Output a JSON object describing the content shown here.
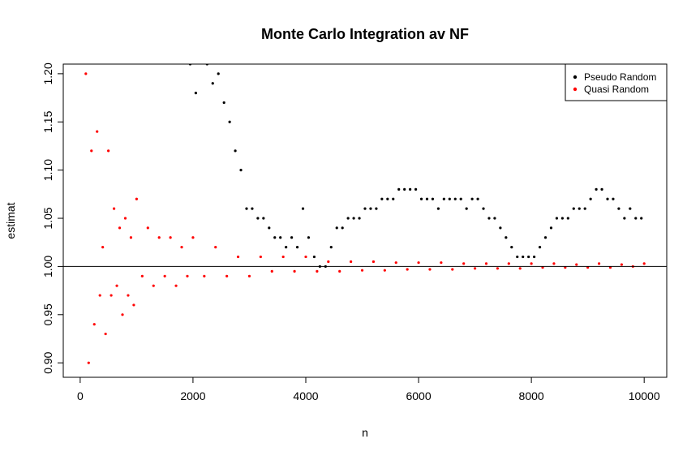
{
  "chart_data": {
    "type": "scatter",
    "title": "Monte Carlo Integration av NF",
    "xlabel": "n",
    "ylabel": "estimat",
    "xlim": [
      -300,
      10400
    ],
    "ylim": [
      0.885,
      1.21
    ],
    "xticks": [
      0,
      2000,
      4000,
      6000,
      8000,
      10000
    ],
    "xtick_labels": [
      "0",
      "2000",
      "4000",
      "6000",
      "8000",
      "10000"
    ],
    "yticks": [
      0.9,
      0.95,
      1.0,
      1.05,
      1.1,
      1.15,
      1.2
    ],
    "ytick_labels": [
      "0.90",
      "0.95",
      "1.00",
      "1.05",
      "1.10",
      "1.15",
      "1.20"
    ],
    "reference_line": 1.0,
    "legend_position": "top-right",
    "series": [
      {
        "name": "Pseudo Random",
        "color": "#000000",
        "x": [
          1950,
          2050,
          2150,
          2250,
          2350,
          2450,
          2550,
          2650,
          2750,
          2850,
          2950,
          3050,
          3150,
          3250,
          3350,
          3450,
          3550,
          3650,
          3750,
          3850,
          3950,
          4050,
          4150,
          4250,
          4350,
          4450,
          4550,
          4650,
          4750,
          4850,
          4950,
          5050,
          5150,
          5250,
          5350,
          5450,
          5550,
          5650,
          5750,
          5850,
          5950,
          6050,
          6150,
          6250,
          6350,
          6450,
          6550,
          6650,
          6750,
          6850,
          6950,
          7050,
          7150,
          7250,
          7350,
          7450,
          7550,
          7650,
          7750,
          7850,
          7950,
          8050,
          8150,
          8250,
          8350,
          8450,
          8550,
          8650,
          8750,
          8850,
          8950,
          9050,
          9150,
          9250,
          9350,
          9450,
          9550,
          9650,
          9750,
          9850,
          9950
        ],
        "y": [
          1.21,
          1.18,
          1.22,
          1.21,
          1.19,
          1.2,
          1.17,
          1.15,
          1.12,
          1.1,
          1.06,
          1.06,
          1.05,
          1.05,
          1.04,
          1.03,
          1.03,
          1.02,
          1.03,
          1.02,
          1.06,
          1.03,
          1.01,
          1.0,
          1.0,
          1.02,
          1.04,
          1.04,
          1.05,
          1.05,
          1.05,
          1.06,
          1.06,
          1.06,
          1.07,
          1.07,
          1.07,
          1.08,
          1.08,
          1.08,
          1.08,
          1.07,
          1.07,
          1.07,
          1.06,
          1.07,
          1.07,
          1.07,
          1.07,
          1.06,
          1.07,
          1.07,
          1.06,
          1.05,
          1.05,
          1.04,
          1.03,
          1.02,
          1.01,
          1.01,
          1.01,
          1.01,
          1.02,
          1.03,
          1.04,
          1.05,
          1.05,
          1.05,
          1.06,
          1.06,
          1.06,
          1.07,
          1.08,
          1.08,
          1.07,
          1.07,
          1.06,
          1.05,
          1.06,
          1.05,
          1.05
        ]
      },
      {
        "name": "Quasi Random",
        "color": "#ff0000",
        "x": [
          100,
          150,
          200,
          250,
          300,
          350,
          400,
          450,
          500,
          550,
          600,
          650,
          700,
          750,
          800,
          850,
          900,
          950,
          1000,
          1100,
          1200,
          1300,
          1400,
          1500,
          1600,
          1700,
          1800,
          1900,
          2000,
          2200,
          2400,
          2600,
          2800,
          3000,
          3200,
          3400,
          3600,
          3800,
          4000,
          4200,
          4400,
          4600,
          4800,
          5000,
          5200,
          5400,
          5600,
          5800,
          6000,
          6200,
          6400,
          6600,
          6800,
          7000,
          7200,
          7400,
          7600,
          7800,
          8000,
          8200,
          8400,
          8600,
          8800,
          9000,
          9200,
          9400,
          9600,
          9800,
          10000
        ],
        "y": [
          1.2,
          0.9,
          1.12,
          0.94,
          1.14,
          0.97,
          1.02,
          0.93,
          1.12,
          0.97,
          1.06,
          0.98,
          1.04,
          0.95,
          1.05,
          0.97,
          1.03,
          0.96,
          1.07,
          0.99,
          1.04,
          0.98,
          1.03,
          0.99,
          1.03,
          0.98,
          1.02,
          0.99,
          1.03,
          0.99,
          1.02,
          0.99,
          1.01,
          0.99,
          1.01,
          0.995,
          1.01,
          0.995,
          1.01,
          0.995,
          1.005,
          0.995,
          1.005,
          0.996,
          1.005,
          0.996,
          1.004,
          0.997,
          1.004,
          0.997,
          1.004,
          0.997,
          1.003,
          0.998,
          1.003,
          0.998,
          1.003,
          0.998,
          1.003,
          0.999,
          1.003,
          0.999,
          1.002,
          0.999,
          1.003,
          0.999,
          1.002,
          1.0,
          1.003
        ]
      }
    ]
  }
}
